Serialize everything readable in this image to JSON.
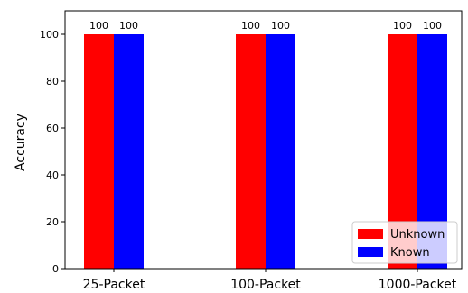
{
  "chart_data": {
    "type": "bar",
    "categories": [
      "25-Packet",
      "100-Packet",
      "1000-Packet"
    ],
    "series": [
      {
        "name": "Unknown",
        "values": [
          100,
          100,
          100
        ],
        "color": "#ff0000"
      },
      {
        "name": "Known",
        "values": [
          100,
          100,
          100
        ],
        "color": "#0000ff"
      }
    ],
    "data_labels": [
      [
        "100",
        "100",
        "100"
      ],
      [
        "100",
        "100",
        "100"
      ]
    ],
    "title": "",
    "xlabel": "",
    "ylabel": "Accuracy",
    "ylim": [
      0,
      110
    ],
    "yticks": [
      0,
      20,
      40,
      60,
      80,
      100
    ],
    "grid": false,
    "legend_position": "lower-right"
  }
}
